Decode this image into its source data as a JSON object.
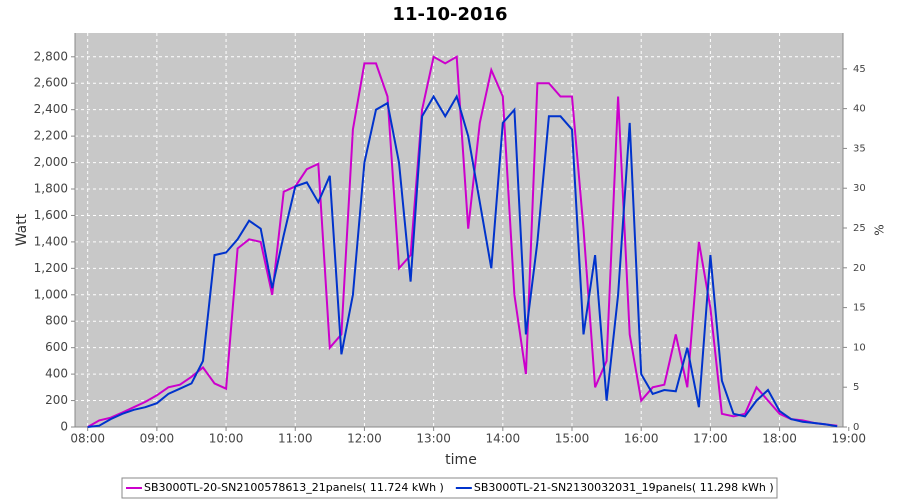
{
  "chart_data": {
    "type": "line",
    "title": "11-10-2016",
    "x_label": "time",
    "y_label": "Watt",
    "y2_label": "%",
    "x": [
      480,
      490,
      500,
      510,
      520,
      530,
      540,
      550,
      560,
      570,
      580,
      590,
      600,
      610,
      620,
      630,
      640,
      650,
      660,
      670,
      680,
      690,
      700,
      710,
      720,
      730,
      740,
      750,
      760,
      770,
      780,
      790,
      800,
      810,
      820,
      830,
      840,
      850,
      860,
      870,
      880,
      890,
      900,
      910,
      920,
      930,
      940,
      950,
      960,
      970,
      980,
      990,
      1000,
      1010,
      1020,
      1030,
      1040,
      1050,
      1060,
      1070,
      1080,
      1090,
      1100,
      1110,
      1120,
      1130
    ],
    "series": [
      {
        "name": "SB3000TL-20-SN2100578613_21panels( 11.724 kWh )",
        "color": "#cc00cc",
        "values": [
          0,
          50,
          70,
          110,
          150,
          190,
          240,
          300,
          320,
          380,
          450,
          330,
          290,
          1350,
          1420,
          1400,
          1000,
          1780,
          1820,
          1950,
          1990,
          600,
          700,
          2250,
          2750,
          2750,
          2500,
          1200,
          1300,
          2400,
          2800,
          2750,
          2800,
          1500,
          2300,
          2700,
          2500,
          1000,
          400,
          2600,
          2600,
          2500,
          2500,
          1500,
          300,
          500,
          2500,
          700,
          200,
          300,
          320,
          700,
          300,
          1400,
          900,
          100,
          80,
          100,
          300,
          200,
          100,
          60,
          50,
          30,
          20,
          10
        ]
      },
      {
        "name": "SB3000TL-21-SN2130032031_19panels( 11.298 kWh )",
        "color": "#0033cc",
        "values": [
          0,
          10,
          60,
          100,
          130,
          150,
          180,
          250,
          290,
          330,
          500,
          1300,
          1320,
          1420,
          1560,
          1500,
          1050,
          1450,
          1820,
          1850,
          1700,
          1900,
          550,
          1000,
          2000,
          2400,
          2450,
          2000,
          1100,
          2350,
          2500,
          2350,
          2500,
          2200,
          1700,
          1200,
          2300,
          2400,
          700,
          1400,
          2350,
          2350,
          2250,
          700,
          1300,
          200,
          1000,
          2300,
          400,
          250,
          280,
          270,
          600,
          150,
          1300,
          350,
          100,
          80,
          200,
          280,
          120,
          60,
          40,
          30,
          20,
          5
        ]
      }
    ],
    "xlim": [
      469,
      1135
    ],
    "xticks": [
      {
        "value": 480,
        "label": "08:00"
      },
      {
        "value": 540,
        "label": "09:00"
      },
      {
        "value": 600,
        "label": "10:00"
      },
      {
        "value": 660,
        "label": "11:00"
      },
      {
        "value": 720,
        "label": "12:00"
      },
      {
        "value": 780,
        "label": "13:00"
      },
      {
        "value": 840,
        "label": "14:00"
      },
      {
        "value": 900,
        "label": "15:00"
      },
      {
        "value": 960,
        "label": "16:00"
      },
      {
        "value": 1020,
        "label": "17:00"
      },
      {
        "value": 1080,
        "label": "18:00"
      },
      {
        "value": 1140,
        "label": "19:00"
      }
    ],
    "ylim": [
      0,
      2980
    ],
    "yticks": [
      0,
      200,
      400,
      600,
      800,
      {
        "value": 1000,
        "label": "1,000"
      },
      {
        "value": 1200,
        "label": "1,200"
      },
      {
        "value": 1400,
        "label": "1,400"
      },
      {
        "value": 1600,
        "label": "1,600"
      },
      {
        "value": 1800,
        "label": "1,800"
      },
      {
        "value": 2000,
        "label": "2,000"
      },
      {
        "value": 2200,
        "label": "2,200"
      },
      {
        "value": 2400,
        "label": "2,400"
      },
      {
        "value": 2600,
        "label": "2,600"
      },
      {
        "value": 2800,
        "label": "2,800"
      }
    ],
    "y2lim": [
      0,
      49.5
    ],
    "y2ticks": [
      0,
      5,
      10,
      15,
      20,
      25,
      30,
      35,
      40,
      45
    ],
    "grid": true,
    "legend": "bottom"
  }
}
